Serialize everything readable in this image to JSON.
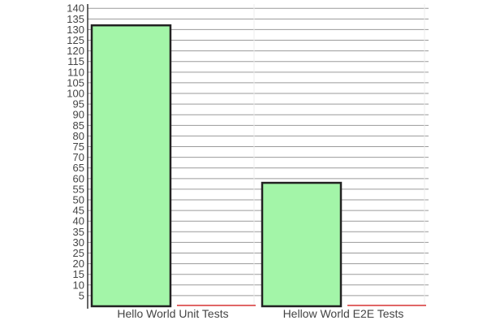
{
  "chart_data": {
    "type": "bar",
    "categories": [
      "Hello World Unit Tests",
      "Hellow World E2E Tests"
    ],
    "series": [
      {
        "values": [
          132,
          58
        ],
        "color": "#a3f5a8",
        "stroke": "#222222"
      },
      {
        "values": [
          0,
          0
        ],
        "color": "#ff9999",
        "stroke": "#e06666"
      }
    ],
    "y_ticks": [
      5,
      10,
      15,
      20,
      25,
      30,
      35,
      40,
      45,
      50,
      55,
      60,
      65,
      70,
      75,
      80,
      85,
      90,
      95,
      100,
      105,
      110,
      115,
      120,
      125,
      130,
      135,
      140
    ],
    "ylim": [
      0,
      142
    ],
    "grid": true,
    "legend": "none",
    "title": "",
    "xlabel": "",
    "ylabel": ""
  }
}
